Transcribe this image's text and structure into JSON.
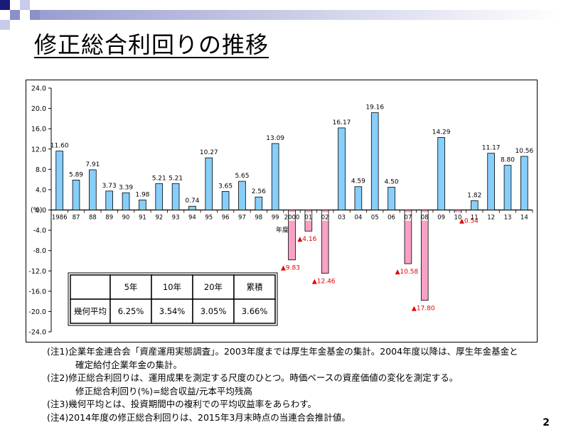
{
  "slide": {
    "title": "修正総合利回りの推移",
    "page_number": "2",
    "colors": {
      "positive_bar": "#87CEFA",
      "negative_bar": "#F7A1C4",
      "negative_label": "#E00000",
      "header_sq_dark": "#1A1A7A",
      "header_sq_light": "#C8CCE8"
    }
  },
  "chart_data": {
    "type": "bar",
    "title": "",
    "xlabel": "年度",
    "ylabel": "(%)",
    "ylim": [
      -24.0,
      24.0
    ],
    "yticks": [
      "24.0",
      "20.0",
      "16.0",
      "12.0",
      "8.0",
      "4.0",
      "0.0",
      "-4.0",
      "-8.0",
      "-12.0",
      "-16.0",
      "-20.0",
      "-24.0"
    ],
    "categories": [
      "1986",
      "87",
      "88",
      "89",
      "90",
      "91",
      "92",
      "93",
      "94",
      "95",
      "96",
      "97",
      "98",
      "99",
      "2000",
      "01",
      "02",
      "03",
      "04",
      "05",
      "06",
      "07",
      "08",
      "09",
      "10",
      "11",
      "12",
      "13",
      "14"
    ],
    "values": [
      11.6,
      5.89,
      7.91,
      3.73,
      3.39,
      1.98,
      5.21,
      5.21,
      0.74,
      10.27,
      3.65,
      5.65,
      2.56,
      13.09,
      -9.83,
      -4.16,
      -12.46,
      16.17,
      4.59,
      19.16,
      4.5,
      -10.58,
      -17.8,
      14.29,
      -0.54,
      1.82,
      11.17,
      8.8,
      10.56
    ],
    "labels": [
      "11.60",
      "5.89",
      "7.91",
      "3.73",
      "3.39",
      "1.98",
      "5.21",
      "5.21",
      "0.74",
      "10.27",
      "3.65",
      "5.65",
      "2.56",
      "13.09",
      "▲9.83",
      "▲4.16",
      "▲12.46",
      "16.17",
      "4.59",
      "19.16",
      "4.50",
      "▲10.58",
      "▲17.80",
      "14.29",
      "▲0.54",
      "1.82",
      "11.17",
      "8.80",
      "10.56"
    ],
    "grid": false,
    "legend": "none"
  },
  "summary_table": {
    "headers": [
      "",
      "5年",
      "10年",
      "20年",
      "累積"
    ],
    "row": [
      "幾何平均",
      "6.25%",
      "3.54%",
      "3.05%",
      "3.66%"
    ]
  },
  "notes": [
    {
      "text": "(注1)企業年金連合会「資産運用実態調査」。2003年度までは厚生年金基金の集計。2004年度以降は、厚生年金基金と",
      "indent": false
    },
    {
      "text": "確定給付企業年金の集計。",
      "indent": true
    },
    {
      "text": "(注2)修正総合利回りは、運用成果を測定する尺度のひとつ。時価ベースの資産価値の変化を測定する。",
      "indent": false
    },
    {
      "text": "修正総合利回り(%)=総合収益/元本平均残高",
      "indent": true
    },
    {
      "text": "(注3)幾何平均とは、投資期間中の複利での平均収益率をあらわす。",
      "indent": false
    },
    {
      "text": "(注4)2014年度の修正総合利回りは、2015年3月末時点の当連合会推計値。",
      "indent": false
    }
  ]
}
